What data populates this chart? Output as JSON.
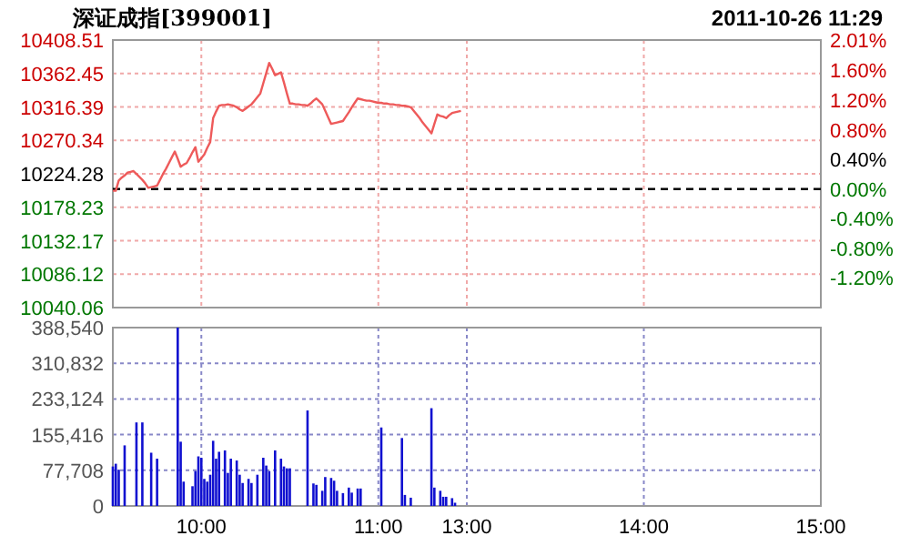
{
  "chart_data": [
    {
      "type": "line",
      "title": "深证成指[399001]",
      "subtitle": "2011-10-26 11:29",
      "categories": [
        null,
        null,
        null,
        null,
        null,
        null,
        null,
        null,
        null,
        null,
        null,
        null,
        null,
        null,
        null,
        null,
        null,
        null,
        null,
        null,
        null,
        null,
        null,
        null,
        null,
        null,
        null,
        null,
        null,
        null,
        null,
        null,
        null,
        null,
        null,
        null,
        null,
        null,
        null,
        null,
        null,
        null,
        null,
        null,
        null,
        null,
        null,
        null,
        null,
        null,
        null,
        null,
        null,
        null,
        null,
        null,
        null,
        null,
        null,
        null,
        null,
        null,
        null,
        null,
        null,
        null,
        null,
        null,
        null,
        null,
        null,
        null,
        null,
        null,
        null,
        null,
        null,
        null,
        null,
        null,
        null,
        null,
        null,
        null,
        null,
        null,
        null,
        null,
        null,
        null,
        null,
        null,
        null,
        null,
        null,
        null,
        null,
        null,
        null,
        null,
        null,
        null,
        null,
        null,
        null,
        null,
        null,
        null,
        null,
        null,
        null,
        null,
        null,
        null,
        null,
        null,
        null,
        null,
        null,
        null,
        null,
        null,
        null,
        null,
        null,
        null,
        null,
        null,
        null,
        null,
        null,
        null,
        null,
        null,
        null,
        null,
        null,
        null,
        null,
        null,
        null,
        null,
        null,
        null,
        null,
        null,
        null,
        null,
        null,
        null,
        null,
        null,
        null,
        null,
        null,
        null,
        null,
        null,
        null,
        null,
        null,
        null,
        null,
        null,
        null,
        null,
        null,
        null,
        null,
        null,
        null,
        null,
        null,
        null,
        null,
        null,
        null,
        null,
        null,
        null,
        null,
        null,
        null,
        null,
        null,
        null,
        null,
        null,
        null,
        null,
        null,
        null,
        null,
        null,
        null,
        null,
        null,
        null,
        null,
        null,
        null,
        null,
        null,
        null,
        null,
        null,
        null,
        null,
        null,
        null,
        null,
        null,
        null,
        null,
        null,
        null,
        null,
        null,
        null,
        null,
        null,
        null,
        null,
        null,
        null,
        null,
        null,
        null,
        null,
        null,
        null,
        null,
        null,
        null,
        null,
        null,
        null,
        null,
        null,
        null,
        null
      ],
      "series": [
        {
          "color": "#ee5a5a",
          "values": [
            10201,
            10201,
            10215,
            10219,
            10222,
            10226,
            10227,
            10228,
            10224,
            10220,
            10216,
            10211,
            10205,
            10206,
            10207,
            10208,
            10216,
            10224,
            10231,
            10239,
            10247,
            10255,
            10245,
            10234,
            10237,
            10239,
            10246,
            10254,
            10261,
            10241,
            10246,
            10251,
            10260,
            10268,
            10301,
            10310,
            10318,
            10319,
            10319,
            10320,
            10319,
            10318,
            10316,
            10313,
            10311,
            10314,
            10317,
            10320,
            10325,
            10330,
            10335,
            10349,
            10363,
            10377,
            10369,
            10360,
            10362,
            10364,
            10350,
            10335,
            10321,
            10321,
            10320,
            10320,
            10319,
            10319,
            10318,
            10321,
            10325,
            10328,
            10324,
            10320,
            10311,
            10302,
            10293,
            10294,
            10295,
            10296,
            10297,
            10303,
            10309,
            10316,
            10322,
            10328,
            10327,
            10326,
            10325,
            10325,
            10324,
            10323,
            10322,
            10322,
            10321,
            10321,
            10320,
            10320,
            10319,
            10319,
            10318,
            10318,
            10317,
            10316,
            10311,
            10306,
            10301,
            10295,
            10290,
            10285,
            10280,
            10293,
            10306,
            10304,
            10303,
            10301,
            10305,
            10308,
            10309,
            10310,
            10311,
            null,
            null,
            null,
            null,
            null,
            null,
            null,
            null,
            null,
            null,
            null,
            null,
            null,
            null,
            null,
            null,
            null,
            null,
            null,
            null,
            null,
            null,
            null,
            null,
            null,
            null,
            null,
            null,
            null,
            null,
            null,
            null,
            null,
            null,
            null,
            null,
            null,
            null,
            null,
            null,
            null,
            null,
            null,
            null,
            null,
            null,
            null,
            null,
            null,
            null,
            null,
            null,
            null,
            null,
            null,
            null,
            null,
            null,
            null,
            null,
            null,
            null,
            null,
            null,
            null,
            null,
            null,
            null,
            null,
            null,
            null,
            null,
            null,
            null,
            null,
            null,
            null,
            null,
            null,
            null,
            null,
            null,
            null,
            null,
            null,
            null,
            null,
            null,
            null,
            null,
            null,
            null,
            null,
            null,
            null,
            null,
            null,
            null,
            null,
            null,
            null,
            null,
            null,
            null,
            null,
            null,
            null,
            null,
            null,
            null,
            null,
            null,
            null,
            null,
            null,
            null,
            null,
            null,
            null,
            null,
            null,
            null
          ]
        }
      ],
      "ylim": [
        10040.06,
        10408.51
      ],
      "yticks": [
        10040.06,
        10086.12,
        10132.17,
        10178.23,
        10224.28,
        10270.34,
        10316.39,
        10362.45,
        10408.51
      ],
      "y2lim": [
        -1.6,
        2.01
      ],
      "y2ticks": [
        {
          "value": -1.2,
          "label": "-1.20%"
        },
        {
          "value": -0.8,
          "label": "-0.80%"
        },
        {
          "value": -0.4,
          "label": "-0.40%"
        },
        {
          "value": 0,
          "label": "0.00%"
        },
        {
          "value": 0.4,
          "label": "0.40%"
        },
        {
          "value": 0.8,
          "label": "0.80%"
        },
        {
          "value": 1.2,
          "label": "1.20%"
        },
        {
          "value": 1.6,
          "label": "1.60%"
        },
        {
          "value": 2.01,
          "label": "2.01%"
        }
      ],
      "ref_lines": [
        {
          "axis": "y2",
          "value": 0,
          "color": "#000000",
          "line_style": "dashed"
        }
      ],
      "grid": true,
      "tick_labels": "y"
    },
    {
      "type": "bar",
      "categories": [
        null,
        null,
        null,
        null,
        null,
        null,
        null,
        null,
        null,
        null,
        null,
        null,
        null,
        null,
        null,
        null,
        null,
        null,
        null,
        null,
        null,
        null,
        null,
        null,
        null,
        null,
        null,
        null,
        null,
        null,
        "10:00",
        null,
        null,
        null,
        null,
        null,
        null,
        null,
        null,
        null,
        null,
        null,
        null,
        null,
        null,
        null,
        null,
        null,
        null,
        null,
        null,
        null,
        null,
        null,
        null,
        null,
        null,
        null,
        null,
        null,
        null,
        null,
        null,
        null,
        null,
        null,
        null,
        null,
        null,
        null,
        null,
        null,
        null,
        null,
        null,
        null,
        null,
        null,
        null,
        null,
        null,
        null,
        null,
        null,
        null,
        null,
        null,
        null,
        null,
        null,
        "11:00",
        null,
        null,
        null,
        null,
        null,
        null,
        null,
        null,
        null,
        null,
        null,
        null,
        null,
        null,
        null,
        null,
        null,
        null,
        null,
        null,
        null,
        null,
        null,
        null,
        null,
        null,
        null,
        null,
        null,
        "13:00",
        null,
        null,
        null,
        null,
        null,
        null,
        null,
        null,
        null,
        null,
        null,
        null,
        null,
        null,
        null,
        null,
        null,
        null,
        null,
        null,
        null,
        null,
        null,
        null,
        null,
        null,
        null,
        null,
        null,
        null,
        null,
        null,
        null,
        null,
        null,
        null,
        null,
        null,
        null,
        null,
        null,
        null,
        null,
        null,
        null,
        null,
        null,
        null,
        null,
        null,
        null,
        null,
        null,
        null,
        null,
        null,
        null,
        null,
        null,
        "14:00",
        null,
        null,
        null,
        null,
        null,
        null,
        null,
        null,
        null,
        null,
        null,
        null,
        null,
        null,
        null,
        null,
        null,
        null,
        null,
        null,
        null,
        null,
        null,
        null,
        null,
        null,
        null,
        null,
        null,
        null,
        null,
        null,
        null,
        null,
        null,
        null,
        null,
        null,
        null,
        null,
        null,
        null,
        null,
        null,
        null,
        null,
        null,
        null,
        null,
        null,
        null,
        null,
        null,
        null,
        null,
        null,
        null,
        null,
        null,
        "15:00"
      ],
      "values": [
        86000,
        92000,
        79000,
        null,
        132000,
        null,
        null,
        null,
        182000,
        null,
        182000,
        null,
        null,
        116000,
        null,
        103000,
        null,
        null,
        null,
        null,
        null,
        null,
        388500,
        140000,
        53000,
        null,
        null,
        43000,
        76000,
        108000,
        105000,
        59000,
        53000,
        68000,
        142000,
        103000,
        118000,
        null,
        121000,
        72000,
        103000,
        null,
        99000,
        68000,
        50000,
        null,
        59000,
        50000,
        null,
        68000,
        null,
        105000,
        88000,
        76000,
        null,
        121000,
        null,
        103000,
        86000,
        82000,
        82000,
        null,
        null,
        null,
        null,
        null,
        208000,
        null,
        49000,
        46000,
        null,
        33000,
        63000,
        null,
        61000,
        55000,
        33000,
        null,
        28000,
        null,
        40000,
        29000,
        null,
        38000,
        38000,
        null,
        null,
        null,
        null,
        null,
        null,
        171000,
        null,
        null,
        null,
        null,
        null,
        null,
        148000,
        24000,
        null,
        18000,
        null,
        null,
        null,
        null,
        null,
        null,
        213000,
        40000,
        null,
        33000,
        20000,
        20000,
        null,
        17000,
        7000,
        null,
        null,
        null,
        null,
        null,
        null,
        null,
        null,
        null,
        null,
        null,
        null,
        null,
        null,
        null,
        null,
        null,
        null,
        null,
        null,
        null,
        null,
        null,
        null,
        null,
        null,
        null,
        null,
        null,
        null,
        null,
        null,
        null,
        null,
        null,
        null,
        null,
        null,
        null,
        null,
        null,
        null,
        null,
        null,
        null,
        null,
        null,
        null,
        null,
        null,
        null,
        null,
        null,
        null,
        null,
        null,
        null,
        null,
        null,
        null,
        null,
        null,
        null,
        null,
        null,
        null,
        null,
        null,
        null,
        null,
        null,
        null,
        null,
        null,
        null,
        null,
        null,
        null,
        null,
        null,
        null,
        null,
        null,
        null,
        null,
        null,
        null,
        null,
        null,
        null,
        null,
        null,
        null,
        null,
        null,
        null,
        null,
        null,
        null,
        null,
        null,
        null,
        null,
        null,
        null,
        null,
        null,
        null,
        null,
        null,
        null,
        null,
        null,
        null,
        null,
        null,
        null,
        null,
        null,
        null,
        null,
        null,
        null,
        null
      ],
      "color": "#1010d0",
      "ylim": [
        0,
        388540
      ],
      "yticks": [
        0,
        {
          "value": 77708,
          "label": "77,708"
        },
        {
          "value": 155416,
          "label": "155,416"
        },
        {
          "value": 233124,
          "label": "233,124"
        },
        {
          "value": 310832,
          "label": "310,832"
        },
        {
          "value": 388540,
          "label": "388,540"
        }
      ],
      "grid": true
    }
  ]
}
